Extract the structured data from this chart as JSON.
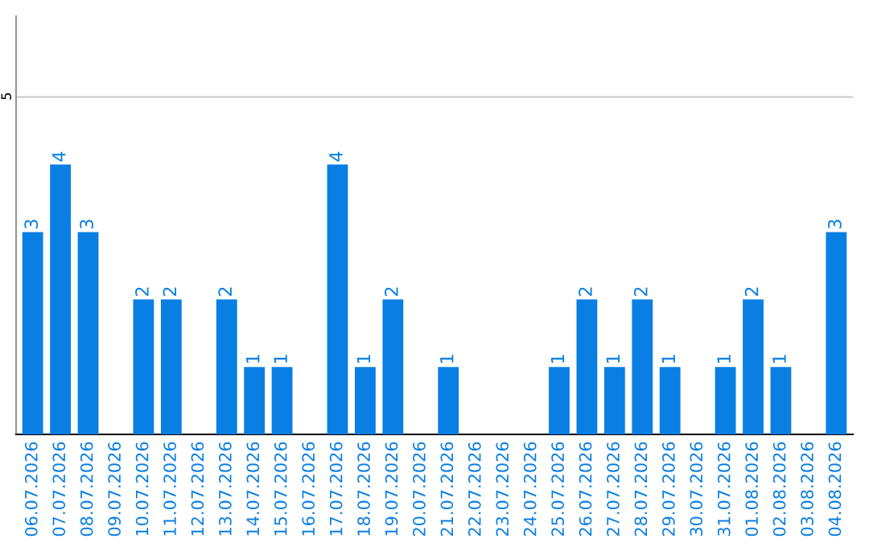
{
  "chart_data": {
    "type": "bar",
    "categories": [
      "06.07.2026",
      "07.07.2026",
      "08.07.2026",
      "09.07.2026",
      "10.07.2026",
      "11.07.2026",
      "12.07.2026",
      "13.07.2026",
      "14.07.2026",
      "15.07.2026",
      "16.07.2026",
      "17.07.2026",
      "18.07.2026",
      "19.07.2026",
      "20.07.2026",
      "21.07.2026",
      "22.07.2026",
      "23.07.2026",
      "24.07.2026",
      "25.07.2026",
      "26.07.2026",
      "27.07.2026",
      "28.07.2026",
      "29.07.2026",
      "30.07.2026",
      "31.07.2026",
      "01.08.2026",
      "02.08.2026",
      "03.08.2026",
      "04.08.2026"
    ],
    "values": [
      3,
      4,
      3,
      0,
      2,
      2,
      0,
      2,
      1,
      1,
      0,
      4,
      1,
      2,
      0,
      1,
      0,
      0,
      0,
      1,
      2,
      1,
      2,
      1,
      0,
      1,
      2,
      1,
      0,
      3
    ],
    "value_labels": [
      "3",
      "4",
      "3",
      null,
      "2",
      "2",
      null,
      "2",
      "1",
      "1",
      null,
      "4",
      "1",
      "2",
      null,
      "1",
      null,
      null,
      null,
      "1",
      "2",
      "1",
      "2",
      "1",
      null,
      "1",
      "2",
      "1",
      null,
      "3"
    ],
    "color": "#0a7fe3",
    "ylim": [
      0,
      6.2
    ],
    "yticks": [
      5
    ],
    "grid": "y"
  }
}
